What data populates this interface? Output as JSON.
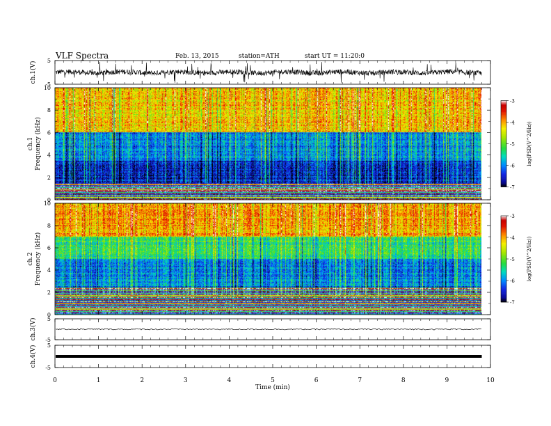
{
  "header": {
    "title": "VLF Spectra",
    "date": "Feb. 13, 2015",
    "station": "station=ATH",
    "start": "start UT =   11:20:0"
  },
  "chart_data": [
    {
      "type": "line",
      "ylabel": "ch.1(V)",
      "ylim": [
        -5,
        5
      ],
      "yticks": [
        "5",
        "-5"
      ],
      "trace": "noisy waveform centered near 0 V, amplitude about 1-3 V with frequent spikes"
    },
    {
      "type": "heatmap",
      "ylabel": "Frequency (kHz)",
      "channel": "ch.1",
      "ylim": [
        0,
        10
      ],
      "yticks": [
        "0",
        "2",
        "4",
        "6",
        "8",
        "10"
      ],
      "colorbar": {
        "label": "log(PSD(V^2/Hz))",
        "ticks": [
          "-3",
          "-4",
          "-5",
          "-6",
          "-7"
        ],
        "range": [
          -7,
          -3
        ],
        "colors": [
          "#000000",
          "#1010c0",
          "#0080ff",
          "#00e0a0",
          "#40e040",
          "#e8e800",
          "#ff8000",
          "#e00000",
          "#ffffff"
        ]
      },
      "bands_khz": [
        {
          "from": 0,
          "to": 1.5,
          "level": "mixed red/yellow/blue horizontal lines"
        },
        {
          "from": 1.5,
          "to": 3.5,
          "level": -6.5
        },
        {
          "from": 3.5,
          "to": 6,
          "level": -6.0
        },
        {
          "from": 6,
          "to": 10,
          "level": -4.2
        }
      ]
    },
    {
      "type": "heatmap",
      "ylabel": "Frequency (kHz)",
      "channel": "ch.2",
      "ylim": [
        0,
        10
      ],
      "yticks": [
        "0",
        "2",
        "4",
        "6",
        "8",
        "10"
      ],
      "colorbar": {
        "label": "log(PSD(V^2/Hz))",
        "ticks": [
          "-3",
          "-4",
          "-5",
          "-6",
          "-7"
        ],
        "range": [
          -7,
          -3
        ]
      },
      "bands_khz": [
        {
          "from": 0,
          "to": 2.5,
          "level": "mixed red/yellow/green horizontal lines"
        },
        {
          "from": 2.5,
          "to": 5,
          "level": -6.0
        },
        {
          "from": 5,
          "to": 7,
          "level": -5.3
        },
        {
          "from": 7,
          "to": 10,
          "level": -4.0
        }
      ]
    },
    {
      "type": "line",
      "ylabel": "ch.3(V)",
      "ylim": [
        -5,
        5
      ],
      "yticks": [
        "5",
        "-5"
      ],
      "trace": "near-flat line at about 0 V"
    },
    {
      "type": "line",
      "ylabel": "ch.4(V)",
      "ylim": [
        -5,
        5
      ],
      "yticks": [
        "5",
        "-5"
      ],
      "trace": "thick flat line at about 0 V"
    }
  ],
  "xaxis": {
    "label": "Time (min)",
    "xlim": [
      0,
      10
    ],
    "ticks": [
      "0",
      "1",
      "2",
      "3",
      "4",
      "5",
      "6",
      "7",
      "8",
      "9",
      "10"
    ],
    "data_end": 9.8
  }
}
